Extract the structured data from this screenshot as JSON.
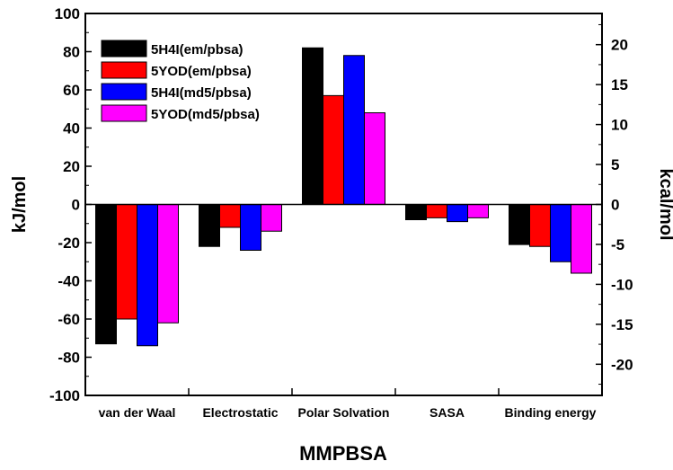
{
  "chart_data": {
    "type": "bar",
    "xlabel": "MMPBSA",
    "ylabel": "kJ/mol",
    "ylabel_right": "kcal/mol",
    "ylim": [
      -100,
      100
    ],
    "ylim_right": [
      -23.9,
      23.9
    ],
    "yticks": [
      "100",
      "80",
      "60",
      "40",
      "20",
      "0",
      "-20",
      "-40",
      "-60",
      "-80",
      "-100"
    ],
    "yticks_right": [
      "20",
      "15",
      "10",
      "5",
      "0",
      "-5",
      "-10",
      "-15",
      "-20"
    ],
    "categories": [
      "van der Waal",
      "Electrostatic",
      "Polar Solvation",
      "SASA",
      "Binding energy"
    ],
    "series": [
      {
        "name": "5H4I(em/pbsa)",
        "color": "#000000",
        "values": [
          -73,
          -22,
          82,
          -8,
          -21
        ]
      },
      {
        "name": "5YOD(em/pbsa)",
        "color": "#ff0000",
        "values": [
          -60,
          -12,
          57,
          -7,
          -22
        ]
      },
      {
        "name": "5H4I(md5/pbsa)",
        "color": "#0000ff",
        "values": [
          -74,
          -24,
          78,
          -9,
          -30
        ]
      },
      {
        "name": "5YOD(md5/pbsa)",
        "color": "#ff00ff",
        "values": [
          -62,
          -14,
          48,
          -7,
          -36
        ]
      }
    ]
  }
}
